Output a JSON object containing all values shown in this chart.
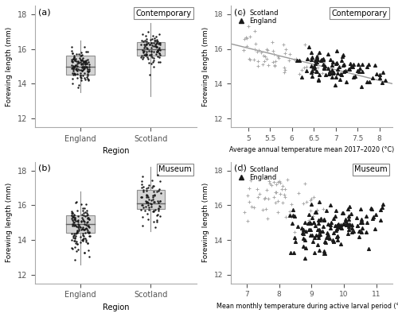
{
  "panel_a": {
    "label": "(a)",
    "title": "Contemporary",
    "xlabel": "Region",
    "ylabel": "Forewing length (mm)",
    "ylim": [
      11.5,
      18.5
    ],
    "yticks": [
      12,
      14,
      16,
      18
    ],
    "categories": [
      "England",
      "Scotland"
    ],
    "england_median": 15.0,
    "england_q1": 14.5,
    "england_q3": 15.6,
    "england_whisker_low": 13.5,
    "england_whisker_high": 16.5,
    "scotland_median": 16.0,
    "scotland_q1": 15.6,
    "scotland_q3": 16.4,
    "scotland_whisker_low": 13.3,
    "scotland_whisker_high": 17.5
  },
  "panel_b": {
    "label": "(b)",
    "title": "Museum",
    "xlabel": "Region",
    "ylabel": "Forewing length (mm)",
    "ylim": [
      11.5,
      18.5
    ],
    "yticks": [
      12,
      14,
      16,
      18
    ],
    "categories": [
      "England",
      "Scotland"
    ],
    "england_median": 14.9,
    "england_q1": 14.4,
    "england_q3": 15.4,
    "england_whisker_low": 12.6,
    "england_whisker_high": 16.8,
    "scotland_median": 16.1,
    "scotland_q1": 15.8,
    "scotland_q3": 16.9,
    "scotland_whisker_low": 14.5,
    "scotland_whisker_high": 18.2
  },
  "panel_c": {
    "label": "(c)",
    "title": "Contemporary",
    "xlabel": "Average annual temperature mean 2017–2020 (°C)",
    "ylabel": "Forewing length (mm)",
    "ylim": [
      11.5,
      18.5
    ],
    "yticks": [
      12,
      14,
      16,
      18
    ],
    "xlim": [
      4.6,
      8.3
    ],
    "xticks": [
      5,
      5.5,
      6,
      6.5,
      7,
      7.5,
      8
    ],
    "xtick_labels": [
      "5",
      "5.5",
      "6",
      "6.5",
      "7",
      "7.5",
      "8"
    ],
    "trendline_x": [
      4.6,
      8.3
    ],
    "trendline_y": [
      16.3,
      14.0
    ]
  },
  "panel_d": {
    "label": "(d)",
    "title": "Museum",
    "xlabel": "Mean monthly temperature during active larval period (°C)",
    "ylabel": "Forewing length (mm)",
    "ylim": [
      11.5,
      18.5
    ],
    "yticks": [
      12,
      14,
      16,
      18
    ],
    "xlim": [
      6.5,
      11.5
    ],
    "xticks": [
      7,
      8,
      9,
      10,
      11
    ],
    "xtick_labels": [
      "7",
      "8",
      "9",
      "10",
      "11"
    ]
  },
  "box_facecolor": "#d4d4d4",
  "box_edgecolor": "#909090",
  "median_color": "#606060",
  "whisker_color": "#909090",
  "point_color_black": "#1a1a1a",
  "point_color_gray": "#aaaaaa",
  "trendline_color": "#999999"
}
